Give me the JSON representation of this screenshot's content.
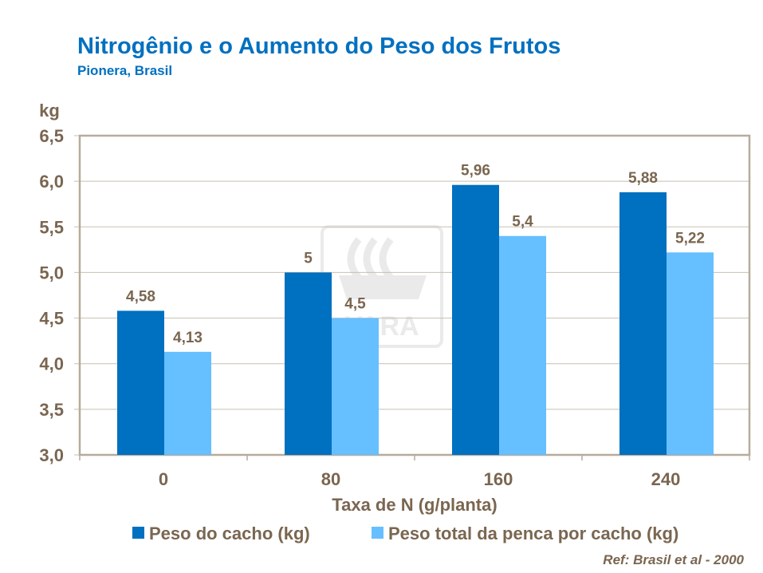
{
  "title": "Nitrogênio e o Aumento do Peso dos Frutos",
  "subtitle": "Pionera, Brasil",
  "reference": "Ref: Brasil et al - 2000",
  "watermark": "YARA",
  "chart_data": {
    "type": "bar",
    "xlabel": "Taxa de N (g/planta)",
    "ylabel": "kg",
    "categories": [
      "0",
      "80",
      "160",
      "240"
    ],
    "ylim": [
      3.0,
      6.5
    ],
    "yticks": [
      "3,0",
      "3,5",
      "4,0",
      "4,5",
      "5,0",
      "5,5",
      "6,0",
      "6,5"
    ],
    "grid": true,
    "legend_position": "bottom",
    "series": [
      {
        "name": "Peso do cacho (kg)",
        "color": "#0070c0",
        "values": [
          4.58,
          5,
          5.96,
          5.88
        ],
        "labels": [
          "4,58",
          "5",
          "5,96",
          "5,88"
        ]
      },
      {
        "name": "Peso total da penca por cacho (kg)",
        "color": "#66bfff",
        "values": [
          4.13,
          4.5,
          5.4,
          5.22
        ],
        "labels": [
          "4,13",
          "4,5",
          "5,4",
          "5,22"
        ]
      }
    ]
  }
}
